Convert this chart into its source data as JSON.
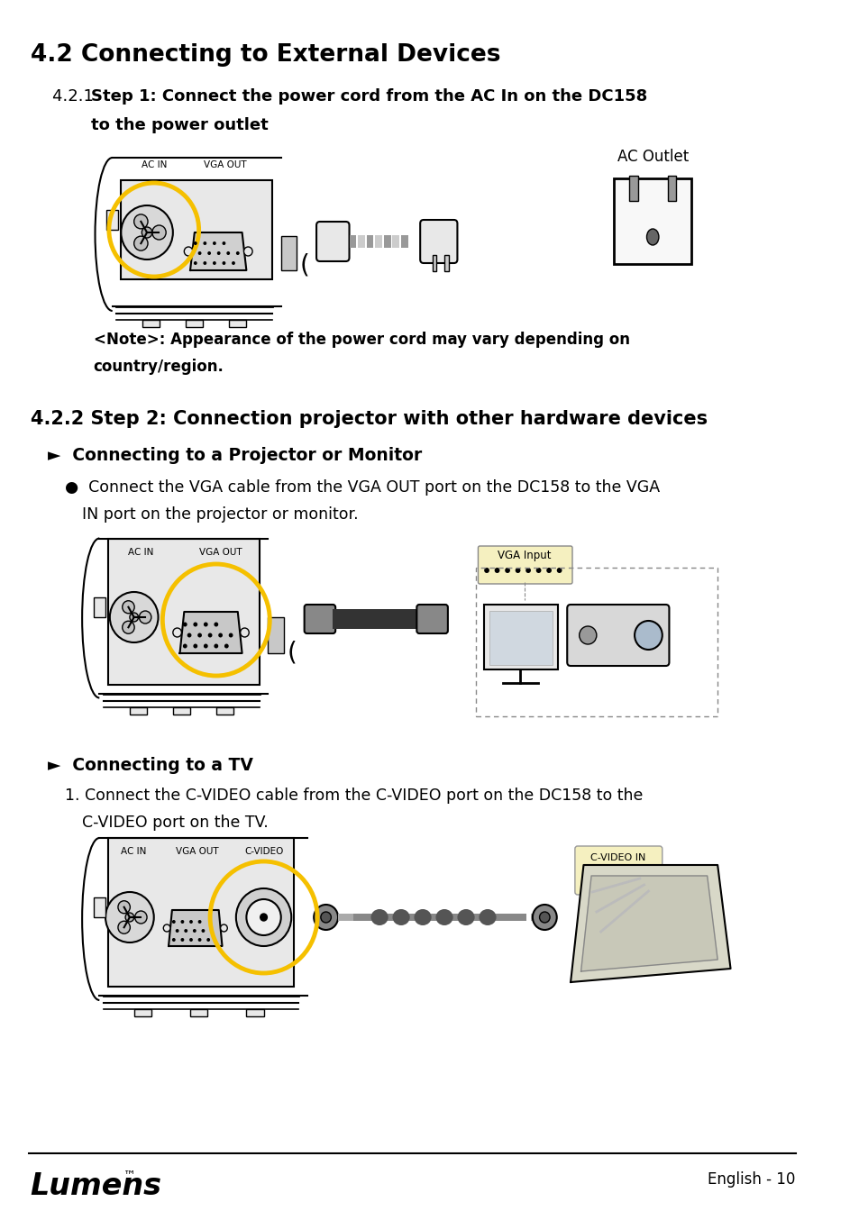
{
  "title": "4.2 Connecting to External Devices",
  "s421_num": "4.2.1 ",
  "s421_bold_line1": "Step 1: Connect the power cord from the AC In on the DC158",
  "s421_bold_line2": "        to the power outlet",
  "s422_bold": "4.2.2 Step 2: Connection projector with other hardware devices",
  "s_proj_header": "►  Connecting to a Projector or Monitor",
  "s_proj_bullet_line1": "●  Connect the VGA cable from the VGA OUT port on the DC158 to the VGA",
  "s_proj_bullet_line2": "   IN port on the projector or monitor.",
  "s_tv_header": "►  Connecting to a TV",
  "s_tv_line1": "   1. Connect the C-VIDEO cable from the C-VIDEO port on the DC158 to the",
  "s_tv_line2": "      C-VIDEO port on the TV.",
  "note_line1": "   <Note>: Appearance of the power cord may vary depending on",
  "note_line2": "   country/region.",
  "ac_outlet_label": "AC Outlet",
  "vga_input_label": "VGA Input",
  "cvideo_in_label": "C-VIDEO IN",
  "footer_page": "English - 10",
  "bg": "#ffffff",
  "black": "#000000",
  "yellow": "#F5C000",
  "gray_light": "#e8e8e8",
  "gray_mid": "#aaaaaa",
  "gray_dark": "#555555",
  "yellow_fill": "#f5f0c0"
}
